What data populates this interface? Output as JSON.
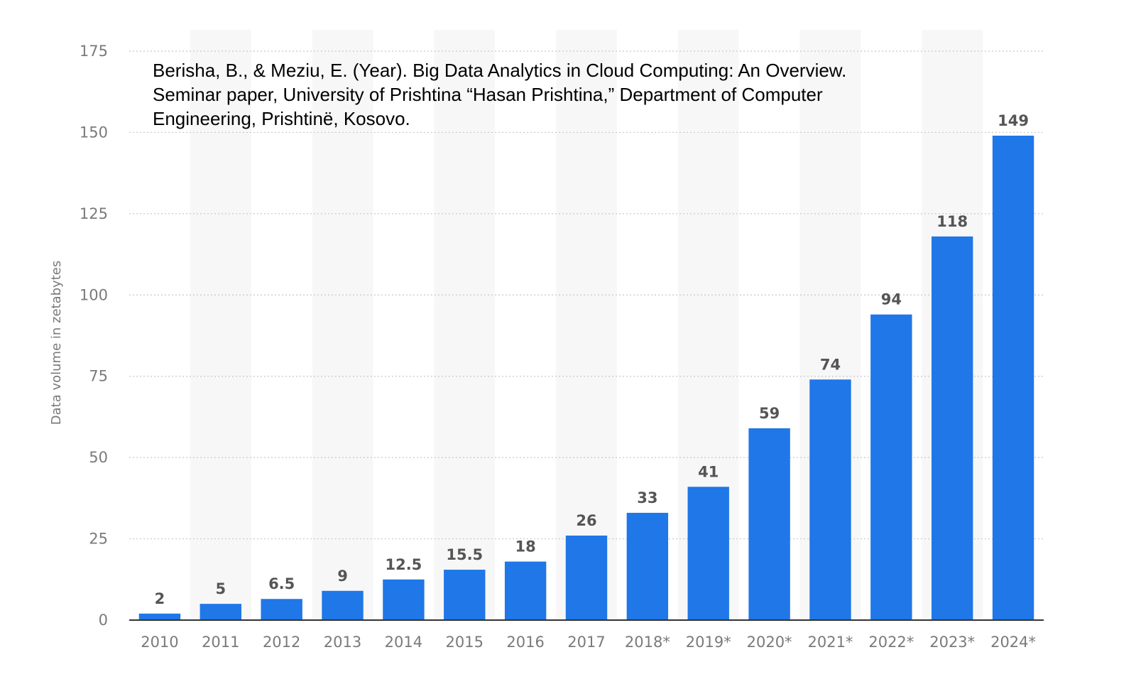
{
  "citation": {
    "lines": [
      "Berisha, B., & Meziu, E. (Year). Big Data Analytics in Cloud Computing: An Overview.",
      "Seminar paper, University of Prishtina “Hasan Prishtina,” Department of Computer",
      "Engineering, Prishtinë, Kosovo."
    ]
  },
  "chart_data": {
    "type": "bar",
    "title": "",
    "xlabel": "",
    "ylabel": "Data volume in zetabytes",
    "categories": [
      "2010",
      "2011",
      "2012",
      "2013",
      "2014",
      "2015",
      "2016",
      "2017",
      "2018*",
      "2019*",
      "2020*",
      "2021*",
      "2022*",
      "2023*",
      "2024*"
    ],
    "values": [
      2,
      5,
      6.5,
      9,
      12.5,
      15.5,
      18,
      26,
      33,
      41,
      59,
      74,
      94,
      118,
      149
    ],
    "data_labels": [
      "2",
      "5",
      "6.5",
      "9",
      "12.5",
      "15.5",
      "18",
      "26",
      "33",
      "41",
      "59",
      "74",
      "94",
      "118",
      "149"
    ],
    "ylim": [
      0,
      175
    ],
    "yticks": [
      0,
      25,
      50,
      75,
      100,
      125,
      150,
      175
    ],
    "ytick_labels": [
      "0",
      "25",
      "50",
      "75",
      "100",
      "125",
      "150",
      "175"
    ],
    "grid": true,
    "bar_color": "#1f77e8",
    "stripe_color": "#f7f7f7"
  }
}
